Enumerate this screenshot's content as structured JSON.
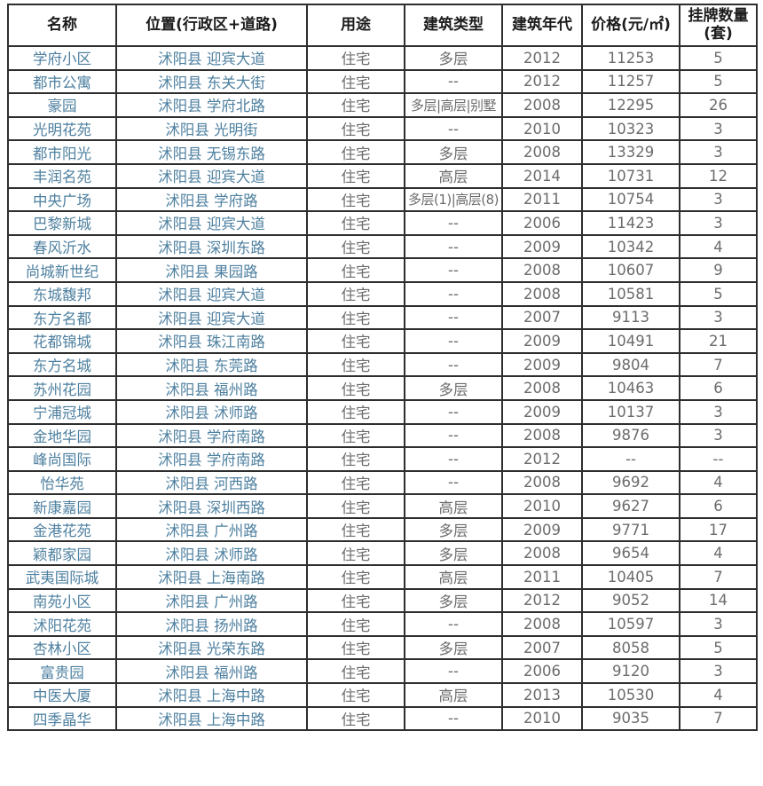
{
  "colors": {
    "link_text": "#4e80a0",
    "muted_text": "#6c6c6c",
    "header_text": "#1c1c1c",
    "border": "#2e2e2e"
  },
  "table": {
    "columns": [
      "名称",
      "位置(行政区+道路)",
      "用途",
      "建筑类型",
      "建筑年代",
      "价格(元/㎡)",
      "挂牌数量(套)"
    ],
    "rows": [
      {
        "name": "学府小区",
        "location": "沭阳县 迎宾大道",
        "usage": "住宅",
        "building_type": "多层",
        "year": "2012",
        "price": "11253",
        "listings": "5"
      },
      {
        "name": "都市公寓",
        "location": "沭阳县 东关大街",
        "usage": "住宅",
        "building_type": "--",
        "year": "2012",
        "price": "11257",
        "listings": "5"
      },
      {
        "name": "豪园",
        "location": "沭阳县 学府北路",
        "usage": "住宅",
        "building_type": "多层|高层|别墅",
        "year": "2008",
        "price": "12295",
        "listings": "26"
      },
      {
        "name": "光明花苑",
        "location": "沭阳县 光明街",
        "usage": "住宅",
        "building_type": "--",
        "year": "2010",
        "price": "10323",
        "listings": "3"
      },
      {
        "name": "都市阳光",
        "location": "沭阳县 无锡东路",
        "usage": "住宅",
        "building_type": "多层",
        "year": "2008",
        "price": "13329",
        "listings": "3"
      },
      {
        "name": "丰润名苑",
        "location": "沭阳县 迎宾大道",
        "usage": "住宅",
        "building_type": "高层",
        "year": "2014",
        "price": "10731",
        "listings": "12"
      },
      {
        "name": "中央广场",
        "location": "沭阳县 学府路",
        "usage": "住宅",
        "building_type": "多层(1)|高层(8)",
        "year": "2011",
        "price": "10754",
        "listings": "3"
      },
      {
        "name": "巴黎新城",
        "location": "沭阳县 迎宾大道",
        "usage": "住宅",
        "building_type": "--",
        "year": "2006",
        "price": "11423",
        "listings": "3"
      },
      {
        "name": "春风沂水",
        "location": "沭阳县 深圳东路",
        "usage": "住宅",
        "building_type": "--",
        "year": "2009",
        "price": "10342",
        "listings": "4"
      },
      {
        "name": "尚城新世纪",
        "location": "沭阳县 果园路",
        "usage": "住宅",
        "building_type": "--",
        "year": "2008",
        "price": "10607",
        "listings": "9"
      },
      {
        "name": "东城馥邦",
        "location": "沭阳县 迎宾大道",
        "usage": "住宅",
        "building_type": "--",
        "year": "2008",
        "price": "10581",
        "listings": "5"
      },
      {
        "name": "东方名都",
        "location": "沭阳县 迎宾大道",
        "usage": "住宅",
        "building_type": "--",
        "year": "2007",
        "price": "9113",
        "listings": "3"
      },
      {
        "name": "花都锦城",
        "location": "沭阳县 珠江南路",
        "usage": "住宅",
        "building_type": "--",
        "year": "2009",
        "price": "10491",
        "listings": "21"
      },
      {
        "name": "东方名城",
        "location": "沭阳县 东莞路",
        "usage": "住宅",
        "building_type": "--",
        "year": "2009",
        "price": "9804",
        "listings": "7"
      },
      {
        "name": "苏州花园",
        "location": "沭阳县 福州路",
        "usage": "住宅",
        "building_type": "多层",
        "year": "2008",
        "price": "10463",
        "listings": "6"
      },
      {
        "name": "宁浦冠城",
        "location": "沭阳县 沭师路",
        "usage": "住宅",
        "building_type": "--",
        "year": "2009",
        "price": "10137",
        "listings": "3"
      },
      {
        "name": "金地华园",
        "location": "沭阳县 学府南路",
        "usage": "住宅",
        "building_type": "--",
        "year": "2008",
        "price": "9876",
        "listings": "3"
      },
      {
        "name": "峰尚国际",
        "location": "沭阳县 学府南路",
        "usage": "住宅",
        "building_type": "--",
        "year": "2012",
        "price": "--",
        "listings": "--"
      },
      {
        "name": "怡华苑",
        "location": "沭阳县 河西路",
        "usage": "住宅",
        "building_type": "--",
        "year": "2008",
        "price": "9692",
        "listings": "4"
      },
      {
        "name": "新康嘉园",
        "location": "沭阳县 深圳西路",
        "usage": "住宅",
        "building_type": "高层",
        "year": "2010",
        "price": "9627",
        "listings": "6"
      },
      {
        "name": "金港花苑",
        "location": "沭阳县 广州路",
        "usage": "住宅",
        "building_type": "多层",
        "year": "2009",
        "price": "9771",
        "listings": "17"
      },
      {
        "name": "颖都家园",
        "location": "沭阳县 沭师路",
        "usage": "住宅",
        "building_type": "多层",
        "year": "2008",
        "price": "9654",
        "listings": "4"
      },
      {
        "name": "武夷国际城",
        "location": "沭阳县 上海南路",
        "usage": "住宅",
        "building_type": "高层",
        "year": "2011",
        "price": "10405",
        "listings": "7"
      },
      {
        "name": "南苑小区",
        "location": "沭阳县 广州路",
        "usage": "住宅",
        "building_type": "多层",
        "year": "2012",
        "price": "9052",
        "listings": "14"
      },
      {
        "name": "沭阳花苑",
        "location": "沭阳县 扬州路",
        "usage": "住宅",
        "building_type": "--",
        "year": "2008",
        "price": "10597",
        "listings": "3"
      },
      {
        "name": "杏林小区",
        "location": "沭阳县 光荣东路",
        "usage": "住宅",
        "building_type": "多层",
        "year": "2007",
        "price": "8058",
        "listings": "5"
      },
      {
        "name": "富贵园",
        "location": "沭阳县 福州路",
        "usage": "住宅",
        "building_type": "--",
        "year": "2006",
        "price": "9120",
        "listings": "3"
      },
      {
        "name": "中医大厦",
        "location": "沭阳县 上海中路",
        "usage": "住宅",
        "building_type": "高层",
        "year": "2013",
        "price": "10530",
        "listings": "4"
      },
      {
        "name": "四季晶华",
        "location": "沭阳县 上海中路",
        "usage": "住宅",
        "building_type": "--",
        "year": "2010",
        "price": "9035",
        "listings": "7"
      }
    ]
  }
}
